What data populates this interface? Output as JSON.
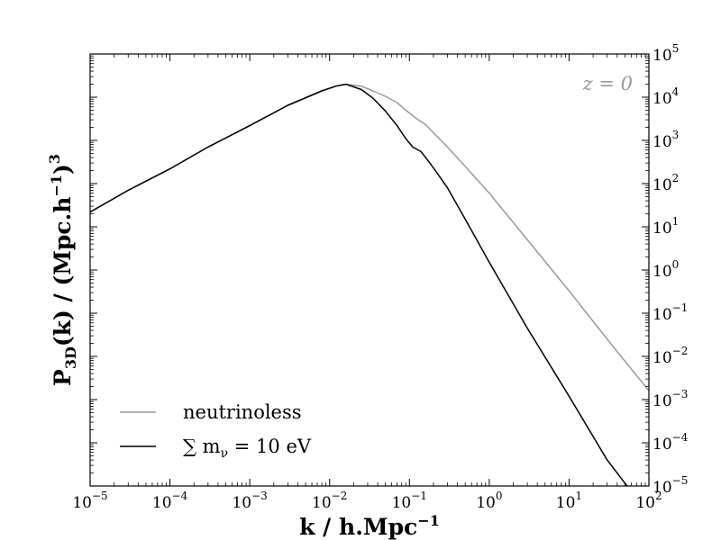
{
  "chart_data": {
    "type": "line",
    "x_scale": "log",
    "y_scale": "log",
    "xlim": [
      1e-05,
      100
    ],
    "ylim": [
      1e-05,
      100000
    ],
    "xlabel": {
      "main": "k / h.Mpc",
      "sup": "−1"
    },
    "ylabel": {
      "main": "P",
      "sub": "3D",
      "rest": "(k)  /  (Mpc.h",
      "sup1": "−1",
      "close": ")",
      "sup2": "3"
    },
    "x_ticks": [
      {
        "value": 1e-05,
        "base": "10",
        "exp": "−5"
      },
      {
        "value": 0.0001,
        "base": "10",
        "exp": "−4"
      },
      {
        "value": 0.001,
        "base": "10",
        "exp": "−3"
      },
      {
        "value": 0.01,
        "base": "10",
        "exp": "−2"
      },
      {
        "value": 0.1,
        "base": "10",
        "exp": "−1"
      },
      {
        "value": 1,
        "base": "10",
        "exp": "0"
      },
      {
        "value": 10,
        "base": "10",
        "exp": "1"
      },
      {
        "value": 100,
        "base": "10",
        "exp": "2"
      }
    ],
    "y_ticks": [
      {
        "value": 100000,
        "base": "10",
        "exp": "5"
      },
      {
        "value": 10000,
        "base": "10",
        "exp": "4"
      },
      {
        "value": 1000,
        "base": "10",
        "exp": "3"
      },
      {
        "value": 100,
        "base": "10",
        "exp": "2"
      },
      {
        "value": 10,
        "base": "10",
        "exp": "1"
      },
      {
        "value": 1,
        "base": "10",
        "exp": "0"
      },
      {
        "value": 0.1,
        "base": "10",
        "exp": "−1"
      },
      {
        "value": 0.01,
        "base": "10",
        "exp": "−2"
      },
      {
        "value": 0.001,
        "base": "10",
        "exp": "−3"
      },
      {
        "value": 0.0001,
        "base": "10",
        "exp": "−4"
      },
      {
        "value": 1e-05,
        "base": "10",
        "exp": "−5"
      }
    ],
    "annotation": "z = 0",
    "legend_position": "bottom-left",
    "series": [
      {
        "name": "neutrinoless",
        "color": "#999999",
        "points": [
          [
            1e-05,
            22
          ],
          [
            3e-05,
            70
          ],
          [
            0.0001,
            220
          ],
          [
            0.0003,
            700
          ],
          [
            0.001,
            2200
          ],
          [
            0.003,
            6500
          ],
          [
            0.008,
            14000
          ],
          [
            0.012,
            18000
          ],
          [
            0.016,
            20000
          ],
          [
            0.025,
            18000
          ],
          [
            0.035,
            14000
          ],
          [
            0.05,
            10500
          ],
          [
            0.07,
            7500
          ],
          [
            0.09,
            5000
          ],
          [
            0.12,
            3300
          ],
          [
            0.16,
            2300
          ],
          [
            0.2,
            1500
          ],
          [
            0.3,
            700
          ],
          [
            0.5,
            250
          ],
          [
            1,
            60
          ],
          [
            3,
            5
          ],
          [
            10,
            0.33
          ],
          [
            30,
            0.025
          ],
          [
            100,
            0.0016
          ]
        ]
      },
      {
        "name": "∑ m_ν = 10 eV",
        "legend_text": "∑ m",
        "legend_sub": "ν",
        "legend_rest": " = 10 eV",
        "color": "#000000",
        "points": [
          [
            1e-05,
            22
          ],
          [
            3e-05,
            70
          ],
          [
            0.0001,
            220
          ],
          [
            0.0003,
            700
          ],
          [
            0.001,
            2200
          ],
          [
            0.003,
            6500
          ],
          [
            0.008,
            14000
          ],
          [
            0.012,
            18000
          ],
          [
            0.016,
            20000
          ],
          [
            0.025,
            15000
          ],
          [
            0.035,
            9500
          ],
          [
            0.05,
            4800
          ],
          [
            0.07,
            2200
          ],
          [
            0.09,
            1100
          ],
          [
            0.11,
            700
          ],
          [
            0.14,
            550
          ],
          [
            0.18,
            300
          ],
          [
            0.22,
            180
          ],
          [
            0.3,
            80
          ],
          [
            0.5,
            15
          ],
          [
            1,
            1.5
          ],
          [
            3,
            0.045
          ],
          [
            10,
            0.0012
          ],
          [
            30,
            4e-05
          ],
          [
            60,
            7.5e-06
          ]
        ]
      }
    ]
  }
}
